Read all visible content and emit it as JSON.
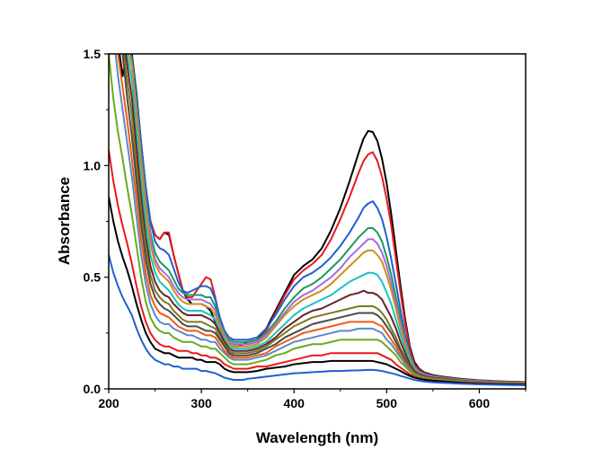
{
  "chart_data": {
    "type": "line",
    "title": "",
    "xlabel": "Wavelength (nm)",
    "ylabel": "Absorbance",
    "xlim": [
      200,
      650
    ],
    "ylim": [
      0,
      1.5
    ],
    "xticks": [
      200,
      300,
      400,
      500,
      600
    ],
    "xtick_labels": [
      "200",
      "300",
      "400",
      "500",
      "600"
    ],
    "yticks": [
      0,
      0.5,
      1.0,
      1.5
    ],
    "ytick_labels": [
      "0.0",
      "0.5",
      "1.0",
      "1.5"
    ],
    "grid": false,
    "legend": "none",
    "x": [
      200,
      205,
      210,
      215,
      220,
      225,
      230,
      235,
      240,
      245,
      250,
      255,
      260,
      265,
      270,
      275,
      280,
      285,
      290,
      295,
      300,
      305,
      310,
      315,
      320,
      325,
      330,
      335,
      340,
      345,
      350,
      360,
      370,
      380,
      390,
      400,
      410,
      420,
      430,
      440,
      450,
      460,
      470,
      475,
      480,
      485,
      490,
      495,
      500,
      505,
      510,
      515,
      520,
      525,
      530,
      535,
      540,
      545,
      550,
      560,
      570,
      580,
      600,
      620,
      650
    ],
    "series": [
      {
        "color": "#000000",
        "values": [
          1.86,
          1.75,
          1.55,
          1.4,
          1.53,
          1.5,
          1.32,
          1.1,
          0.9,
          0.75,
          0.69,
          0.67,
          0.7,
          0.69,
          0.6,
          0.52,
          0.44,
          0.4,
          0.38,
          0.38,
          0.38,
          0.37,
          0.35,
          0.3,
          0.26,
          0.22,
          0.2,
          0.19,
          0.19,
          0.2,
          0.21,
          0.22,
          0.27,
          0.35,
          0.43,
          0.51,
          0.55,
          0.58,
          0.63,
          0.71,
          0.81,
          0.93,
          1.06,
          1.12,
          1.155,
          1.15,
          1.11,
          1.03,
          0.92,
          0.78,
          0.62,
          0.46,
          0.31,
          0.19,
          0.12,
          0.09,
          0.075,
          0.068,
          0.062,
          0.055,
          0.05,
          0.045,
          0.038,
          0.034,
          0.03
        ]
      },
      {
        "color": "#e8191f",
        "values": [
          1.86,
          1.75,
          1.65,
          1.6,
          1.55,
          1.48,
          1.3,
          1.1,
          0.9,
          0.75,
          0.69,
          0.67,
          0.7,
          0.7,
          0.6,
          0.52,
          0.44,
          0.41,
          0.41,
          0.44,
          0.47,
          0.5,
          0.49,
          0.41,
          0.31,
          0.24,
          0.21,
          0.2,
          0.2,
          0.2,
          0.2,
          0.21,
          0.26,
          0.34,
          0.42,
          0.49,
          0.53,
          0.56,
          0.6,
          0.67,
          0.76,
          0.86,
          0.97,
          1.02,
          1.05,
          1.06,
          1.02,
          0.95,
          0.85,
          0.73,
          0.58,
          0.43,
          0.29,
          0.18,
          0.11,
          0.085,
          0.072,
          0.065,
          0.06,
          0.053,
          0.048,
          0.043,
          0.037,
          0.033,
          0.03
        ]
      },
      {
        "color": "#1f5fd1",
        "values": [
          1.86,
          1.75,
          1.65,
          1.6,
          1.55,
          1.48,
          1.3,
          1.1,
          0.9,
          0.75,
          0.66,
          0.63,
          0.62,
          0.6,
          0.54,
          0.48,
          0.44,
          0.43,
          0.44,
          0.45,
          0.46,
          0.46,
          0.45,
          0.4,
          0.32,
          0.26,
          0.23,
          0.22,
          0.22,
          0.22,
          0.22,
          0.23,
          0.27,
          0.33,
          0.4,
          0.46,
          0.5,
          0.52,
          0.55,
          0.59,
          0.64,
          0.7,
          0.77,
          0.81,
          0.83,
          0.84,
          0.81,
          0.76,
          0.68,
          0.58,
          0.47,
          0.35,
          0.24,
          0.16,
          0.1,
          0.078,
          0.068,
          0.062,
          0.057,
          0.051,
          0.046,
          0.042,
          0.036,
          0.032,
          0.029
        ]
      },
      {
        "color": "#1b9a5c",
        "values": [
          1.86,
          1.75,
          1.65,
          1.6,
          1.55,
          1.48,
          1.28,
          1.06,
          0.86,
          0.7,
          0.61,
          0.57,
          0.55,
          0.53,
          0.49,
          0.45,
          0.43,
          0.42,
          0.42,
          0.42,
          0.42,
          0.41,
          0.41,
          0.37,
          0.3,
          0.25,
          0.22,
          0.21,
          0.21,
          0.21,
          0.21,
          0.22,
          0.25,
          0.3,
          0.36,
          0.41,
          0.45,
          0.47,
          0.5,
          0.54,
          0.58,
          0.63,
          0.68,
          0.7,
          0.72,
          0.72,
          0.7,
          0.66,
          0.59,
          0.51,
          0.41,
          0.31,
          0.22,
          0.15,
          0.1,
          0.076,
          0.066,
          0.06,
          0.055,
          0.05,
          0.045,
          0.041,
          0.035,
          0.031,
          0.028
        ]
      },
      {
        "color": "#a66ae0",
        "values": [
          1.86,
          1.75,
          1.65,
          1.6,
          1.55,
          1.46,
          1.25,
          1.03,
          0.83,
          0.68,
          0.58,
          0.54,
          0.52,
          0.5,
          0.46,
          0.43,
          0.41,
          0.4,
          0.4,
          0.4,
          0.4,
          0.39,
          0.38,
          0.35,
          0.29,
          0.24,
          0.21,
          0.2,
          0.2,
          0.2,
          0.2,
          0.21,
          0.24,
          0.29,
          0.34,
          0.39,
          0.42,
          0.44,
          0.47,
          0.5,
          0.54,
          0.59,
          0.63,
          0.65,
          0.67,
          0.67,
          0.65,
          0.61,
          0.55,
          0.47,
          0.38,
          0.29,
          0.21,
          0.14,
          0.095,
          0.074,
          0.065,
          0.059,
          0.054,
          0.049,
          0.044,
          0.04,
          0.034,
          0.03,
          0.027
        ]
      },
      {
        "color": "#d08d16",
        "values": [
          1.86,
          1.75,
          1.65,
          1.6,
          1.55,
          1.44,
          1.22,
          1.0,
          0.8,
          0.65,
          0.56,
          0.52,
          0.5,
          0.48,
          0.44,
          0.41,
          0.39,
          0.38,
          0.38,
          0.38,
          0.38,
          0.37,
          0.36,
          0.33,
          0.28,
          0.23,
          0.2,
          0.19,
          0.19,
          0.19,
          0.19,
          0.2,
          0.23,
          0.28,
          0.33,
          0.37,
          0.4,
          0.42,
          0.44,
          0.47,
          0.51,
          0.55,
          0.59,
          0.61,
          0.62,
          0.62,
          0.6,
          0.57,
          0.51,
          0.44,
          0.36,
          0.27,
          0.2,
          0.135,
          0.09,
          0.072,
          0.063,
          0.057,
          0.053,
          0.048,
          0.043,
          0.039,
          0.033,
          0.029,
          0.027
        ]
      },
      {
        "color": "#19c2c2",
        "values": [
          1.86,
          1.75,
          1.65,
          1.6,
          1.5,
          1.38,
          1.15,
          0.93,
          0.74,
          0.6,
          0.52,
          0.48,
          0.46,
          0.44,
          0.41,
          0.38,
          0.36,
          0.35,
          0.35,
          0.35,
          0.35,
          0.34,
          0.33,
          0.31,
          0.26,
          0.22,
          0.19,
          0.18,
          0.18,
          0.18,
          0.18,
          0.19,
          0.21,
          0.25,
          0.29,
          0.33,
          0.36,
          0.38,
          0.4,
          0.42,
          0.45,
          0.48,
          0.5,
          0.51,
          0.52,
          0.52,
          0.51,
          0.48,
          0.43,
          0.38,
          0.31,
          0.24,
          0.18,
          0.125,
          0.085,
          0.07,
          0.061,
          0.056,
          0.052,
          0.047,
          0.042,
          0.038,
          0.032,
          0.029,
          0.026
        ]
      },
      {
        "color": "#6b2228",
        "values": [
          1.86,
          1.75,
          1.65,
          1.6,
          1.45,
          1.3,
          1.08,
          0.86,
          0.68,
          0.55,
          0.48,
          0.44,
          0.42,
          0.41,
          0.38,
          0.36,
          0.34,
          0.33,
          0.33,
          0.33,
          0.33,
          0.32,
          0.31,
          0.29,
          0.25,
          0.21,
          0.18,
          0.17,
          0.17,
          0.17,
          0.17,
          0.18,
          0.2,
          0.23,
          0.27,
          0.3,
          0.33,
          0.35,
          0.36,
          0.38,
          0.4,
          0.42,
          0.43,
          0.44,
          0.43,
          0.43,
          0.42,
          0.4,
          0.36,
          0.32,
          0.27,
          0.21,
          0.16,
          0.11,
          0.08,
          0.066,
          0.059,
          0.054,
          0.05,
          0.046,
          0.041,
          0.037,
          0.031,
          0.028,
          0.025
        ]
      },
      {
        "color": "#7a7a1e",
        "values": [
          1.86,
          1.75,
          1.65,
          1.55,
          1.38,
          1.22,
          1.0,
          0.8,
          0.63,
          0.51,
          0.44,
          0.41,
          0.39,
          0.38,
          0.35,
          0.33,
          0.31,
          0.3,
          0.3,
          0.3,
          0.3,
          0.29,
          0.28,
          0.27,
          0.23,
          0.2,
          0.17,
          0.16,
          0.16,
          0.16,
          0.16,
          0.17,
          0.19,
          0.22,
          0.25,
          0.28,
          0.3,
          0.32,
          0.33,
          0.34,
          0.35,
          0.36,
          0.37,
          0.37,
          0.37,
          0.37,
          0.36,
          0.34,
          0.31,
          0.27,
          0.23,
          0.18,
          0.14,
          0.1,
          0.075,
          0.062,
          0.056,
          0.052,
          0.048,
          0.044,
          0.04,
          0.036,
          0.03,
          0.027,
          0.024
        ]
      },
      {
        "color": "#4a4a4a",
        "values": [
          1.86,
          1.75,
          1.6,
          1.5,
          1.3,
          1.13,
          0.93,
          0.74,
          0.58,
          0.47,
          0.41,
          0.38,
          0.36,
          0.35,
          0.33,
          0.31,
          0.29,
          0.28,
          0.28,
          0.28,
          0.27,
          0.26,
          0.26,
          0.25,
          0.22,
          0.19,
          0.16,
          0.15,
          0.15,
          0.15,
          0.15,
          0.16,
          0.18,
          0.2,
          0.23,
          0.25,
          0.27,
          0.29,
          0.3,
          0.31,
          0.32,
          0.33,
          0.34,
          0.34,
          0.34,
          0.34,
          0.33,
          0.31,
          0.28,
          0.25,
          0.21,
          0.17,
          0.13,
          0.095,
          0.072,
          0.06,
          0.054,
          0.05,
          0.047,
          0.043,
          0.039,
          0.035,
          0.03,
          0.026,
          0.023
        ]
      },
      {
        "color": "#f05a14",
        "values": [
          1.86,
          1.7,
          1.5,
          1.35,
          1.2,
          1.03,
          0.85,
          0.67,
          0.52,
          0.42,
          0.37,
          0.34,
          0.33,
          0.32,
          0.3,
          0.28,
          0.27,
          0.26,
          0.26,
          0.26,
          0.25,
          0.24,
          0.24,
          0.23,
          0.2,
          0.17,
          0.15,
          0.14,
          0.14,
          0.14,
          0.14,
          0.15,
          0.16,
          0.19,
          0.21,
          0.23,
          0.25,
          0.26,
          0.27,
          0.28,
          0.29,
          0.3,
          0.3,
          0.3,
          0.3,
          0.3,
          0.29,
          0.28,
          0.25,
          0.22,
          0.19,
          0.15,
          0.12,
          0.09,
          0.068,
          0.058,
          0.052,
          0.048,
          0.045,
          0.041,
          0.037,
          0.034,
          0.029,
          0.026,
          0.023
        ]
      },
      {
        "color": "#5b8ac2",
        "values": [
          1.86,
          1.6,
          1.4,
          1.25,
          1.1,
          0.95,
          0.77,
          0.6,
          0.47,
          0.38,
          0.33,
          0.3,
          0.29,
          0.29,
          0.27,
          0.26,
          0.25,
          0.24,
          0.24,
          0.23,
          0.22,
          0.22,
          0.21,
          0.21,
          0.18,
          0.16,
          0.14,
          0.13,
          0.13,
          0.13,
          0.13,
          0.14,
          0.15,
          0.17,
          0.19,
          0.21,
          0.22,
          0.23,
          0.24,
          0.25,
          0.26,
          0.26,
          0.27,
          0.27,
          0.27,
          0.27,
          0.26,
          0.25,
          0.22,
          0.2,
          0.17,
          0.14,
          0.11,
          0.085,
          0.065,
          0.056,
          0.05,
          0.047,
          0.044,
          0.04,
          0.036,
          0.033,
          0.028,
          0.025,
          0.022
        ]
      },
      {
        "color": "#6aaa1c",
        "values": [
          1.5,
          1.3,
          1.15,
          1.03,
          0.9,
          0.78,
          0.64,
          0.5,
          0.39,
          0.32,
          0.28,
          0.26,
          0.25,
          0.25,
          0.23,
          0.22,
          0.21,
          0.21,
          0.21,
          0.2,
          0.19,
          0.19,
          0.18,
          0.18,
          0.16,
          0.14,
          0.12,
          0.11,
          0.11,
          0.11,
          0.11,
          0.12,
          0.13,
          0.15,
          0.16,
          0.18,
          0.19,
          0.2,
          0.2,
          0.21,
          0.22,
          0.22,
          0.22,
          0.22,
          0.22,
          0.22,
          0.22,
          0.21,
          0.19,
          0.17,
          0.15,
          0.12,
          0.1,
          0.078,
          0.062,
          0.053,
          0.048,
          0.045,
          0.042,
          0.038,
          0.035,
          0.032,
          0.027,
          0.024,
          0.021
        ]
      },
      {
        "color": "#e8191f",
        "values": [
          1.07,
          0.93,
          0.82,
          0.73,
          0.65,
          0.56,
          0.46,
          0.37,
          0.3,
          0.25,
          0.22,
          0.2,
          0.19,
          0.19,
          0.18,
          0.17,
          0.17,
          0.17,
          0.16,
          0.16,
          0.15,
          0.15,
          0.14,
          0.14,
          0.13,
          0.11,
          0.1,
          0.09,
          0.09,
          0.09,
          0.09,
          0.1,
          0.1,
          0.11,
          0.12,
          0.13,
          0.14,
          0.15,
          0.15,
          0.16,
          0.16,
          0.16,
          0.16,
          0.16,
          0.16,
          0.16,
          0.16,
          0.15,
          0.14,
          0.13,
          0.11,
          0.095,
          0.08,
          0.065,
          0.055,
          0.048,
          0.044,
          0.041,
          0.038,
          0.035,
          0.032,
          0.029,
          0.025,
          0.022,
          0.02
        ]
      },
      {
        "color": "#000000",
        "values": [
          0.86,
          0.75,
          0.66,
          0.59,
          0.53,
          0.46,
          0.38,
          0.31,
          0.25,
          0.21,
          0.18,
          0.17,
          0.16,
          0.16,
          0.15,
          0.14,
          0.14,
          0.14,
          0.14,
          0.13,
          0.13,
          0.12,
          0.12,
          0.12,
          0.11,
          0.09,
          0.08,
          0.075,
          0.075,
          0.075,
          0.075,
          0.08,
          0.09,
          0.095,
          0.1,
          0.11,
          0.115,
          0.12,
          0.12,
          0.125,
          0.125,
          0.125,
          0.125,
          0.125,
          0.125,
          0.125,
          0.12,
          0.115,
          0.11,
          0.1,
          0.09,
          0.08,
          0.068,
          0.058,
          0.05,
          0.045,
          0.041,
          0.038,
          0.036,
          0.033,
          0.03,
          0.027,
          0.023,
          0.021,
          0.019
        ]
      },
      {
        "color": "#1f5fd1",
        "values": [
          0.6,
          0.52,
          0.46,
          0.41,
          0.37,
          0.33,
          0.27,
          0.22,
          0.18,
          0.15,
          0.13,
          0.12,
          0.11,
          0.11,
          0.1,
          0.1,
          0.09,
          0.09,
          0.09,
          0.09,
          0.08,
          0.08,
          0.075,
          0.07,
          0.06,
          0.05,
          0.045,
          0.04,
          0.04,
          0.04,
          0.045,
          0.05,
          0.055,
          0.06,
          0.065,
          0.07,
          0.072,
          0.075,
          0.077,
          0.08,
          0.08,
          0.082,
          0.083,
          0.084,
          0.085,
          0.085,
          0.083,
          0.08,
          0.075,
          0.07,
          0.065,
          0.058,
          0.052,
          0.046,
          0.04,
          0.036,
          0.033,
          0.031,
          0.029,
          0.027,
          0.025,
          0.023,
          0.02,
          0.018,
          0.016
        ]
      }
    ]
  }
}
